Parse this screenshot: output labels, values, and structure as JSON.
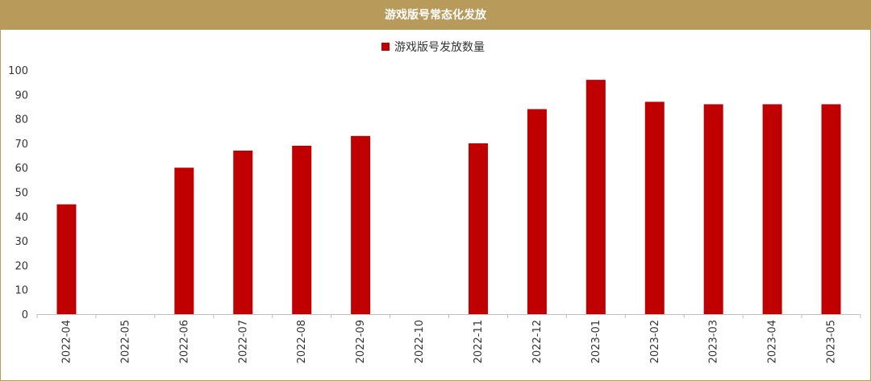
{
  "header": {
    "title": "游戏版号常态化发放"
  },
  "colors": {
    "header_bg": "#b89a5a",
    "bar": "#c00000",
    "axis": "#bfbfbf"
  },
  "chart_data": {
    "type": "bar",
    "title": "游戏版号常态化发放",
    "xlabel": "",
    "ylabel": "",
    "ylim": [
      0,
      100
    ],
    "yticks": [
      0,
      10,
      20,
      30,
      40,
      50,
      60,
      70,
      80,
      90,
      100
    ],
    "grid": false,
    "legend_position": "top-center",
    "categories": [
      "2022-04",
      "2022-05",
      "2022-06",
      "2022-07",
      "2022-08",
      "2022-09",
      "2022-10",
      "2022-11",
      "2022-12",
      "2023-01",
      "2023-02",
      "2023-03",
      "2023-04",
      "2023-05"
    ],
    "series": [
      {
        "name": "游戏版号发放数量",
        "values": [
          45,
          0,
          60,
          67,
          69,
          73,
          0,
          70,
          84,
          96,
          87,
          86,
          86,
          86
        ]
      }
    ]
  }
}
